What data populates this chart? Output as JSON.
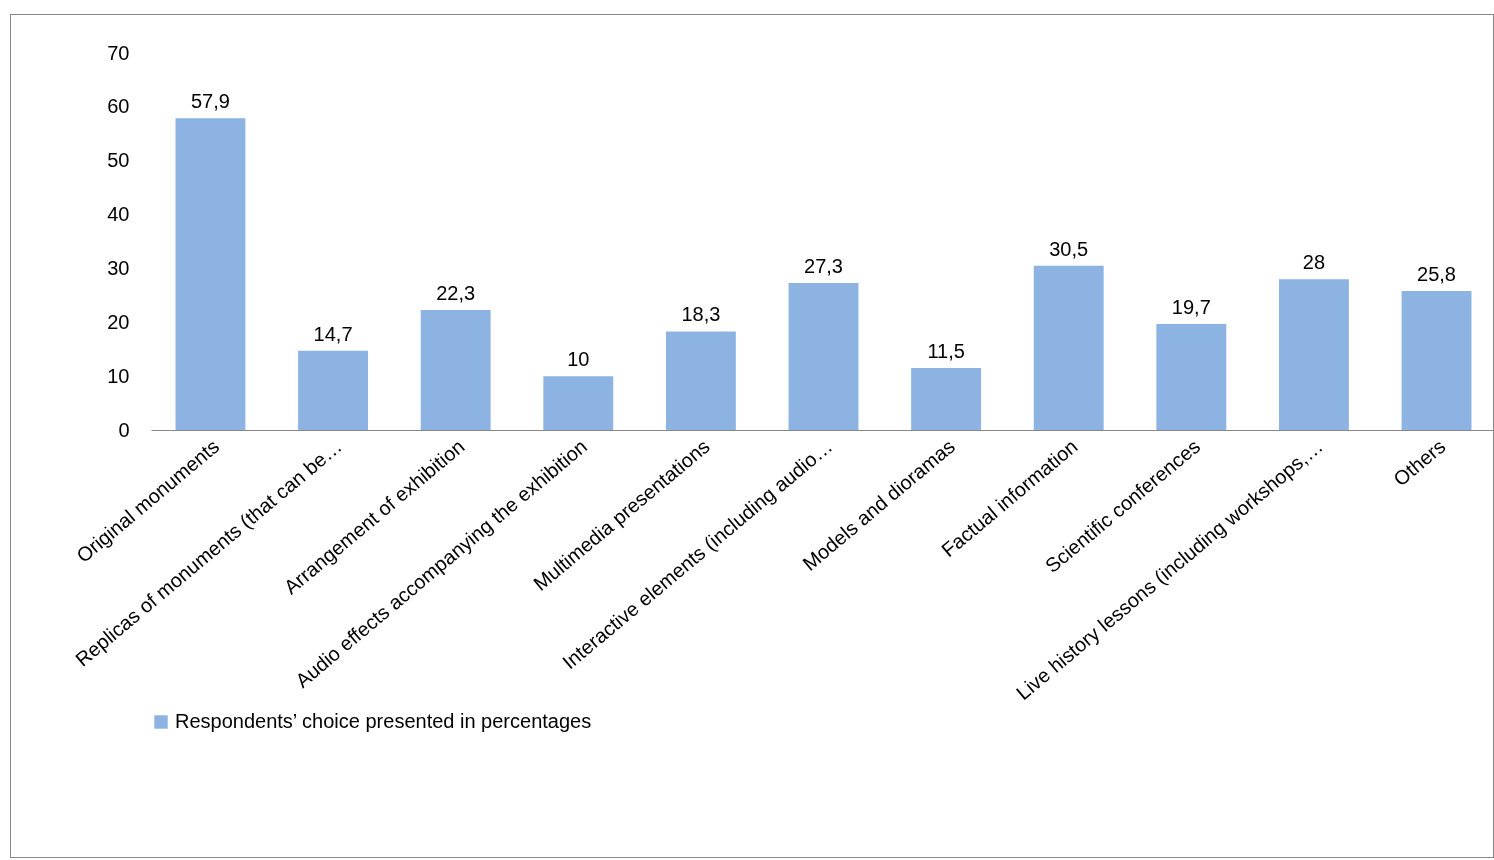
{
  "chart_data": {
    "type": "bar",
    "categories": [
      "Original monuments",
      "Replicas of monuments (that can be…",
      "Arrangement of exhibition",
      "Audio effects accompanying the exhibition",
      "Multimedia presentations",
      "Interactive elements (including audio…",
      "Models and dioramas",
      "Factual information",
      "Scientific conferences",
      "Live history lessons (including workshops,…",
      "Others"
    ],
    "series": [
      {
        "name": "Respondents’ choice presented in percentages",
        "color": "#8db3e2",
        "values": [
          57.9,
          14.7,
          22.3,
          10,
          18.3,
          27.3,
          11.5,
          30.5,
          19.7,
          28,
          25.8
        ],
        "value_labels": [
          "57,9",
          "14,7",
          "22,3",
          "10",
          "18,3",
          "27,3",
          "11,5",
          "30,5",
          "19,7",
          "28",
          "25,8"
        ]
      }
    ],
    "ylim": [
      0,
      70
    ],
    "yticks": [
      0,
      10,
      20,
      30,
      40,
      50,
      60,
      70
    ],
    "grid": false,
    "legend": "bottom"
  }
}
